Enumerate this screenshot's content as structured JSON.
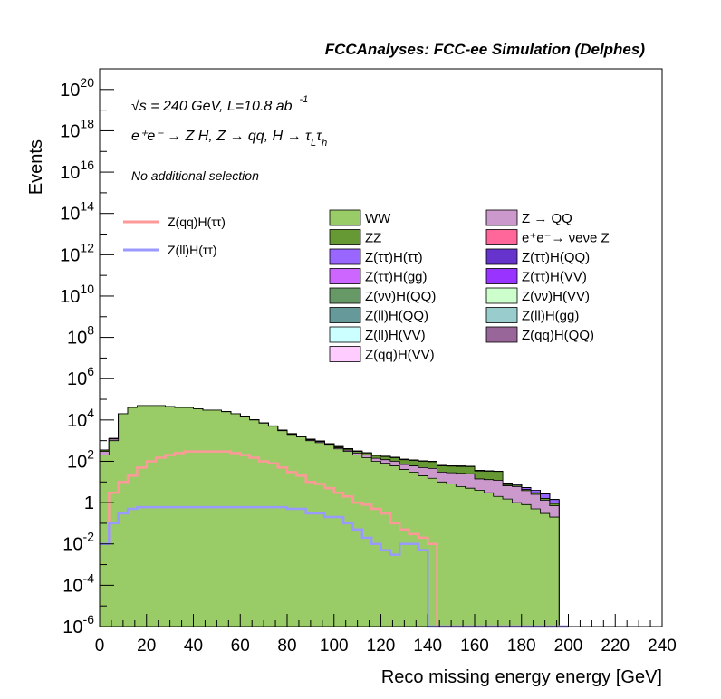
{
  "chart_data": {
    "type": "area",
    "title": "FCCAnalyses: FCC-ee Simulation (Delphes)",
    "xlabel": "Reco missing energy energy [GeV]",
    "ylabel": "Events",
    "xlim": [
      0,
      240
    ],
    "ylim": [
      1e-06,
      1e+21
    ],
    "log_y": true,
    "x_ticks": [
      "0",
      "20",
      "40",
      "60",
      "80",
      "100",
      "120",
      "140",
      "160",
      "180",
      "200",
      "220",
      "240"
    ],
    "y_ticks": [
      {
        "base": "10",
        "exp": "20",
        "value": 1e+20
      },
      {
        "base": "10",
        "exp": "18",
        "value": 1e+18
      },
      {
        "base": "10",
        "exp": "16",
        "value": 1e+16
      },
      {
        "base": "10",
        "exp": "14",
        "value": 100000000000000.0
      },
      {
        "base": "10",
        "exp": "12",
        "value": 1000000000000.0
      },
      {
        "base": "10",
        "exp": "10",
        "value": 10000000000.0
      },
      {
        "base": "10",
        "exp": "8",
        "value": 100000000.0
      },
      {
        "base": "10",
        "exp": "6",
        "value": 1000000.0
      },
      {
        "base": "10",
        "exp": "4",
        "value": 10000.0
      },
      {
        "base": "10",
        "exp": "2",
        "value": 100.0
      },
      {
        "base": "1",
        "exp": "",
        "value": 1
      },
      {
        "base": "10",
        "exp": "-2",
        "value": 0.01
      },
      {
        "base": "10",
        "exp": "-4",
        "value": 0.0001
      },
      {
        "base": "10",
        "exp": "-6",
        "value": 1e-06
      }
    ],
    "annotations": {
      "energy_sqrt": "√s",
      "energy_rest": " = 240 GeV, L=10.8 ab",
      "lumi_exp": "-1",
      "process": "e⁺e⁻ → Z H, Z → qq, H → τ",
      "tau1_sub": "L",
      "tau2": "τ",
      "tau2_sub": "h",
      "selection": "No additional selection"
    },
    "bin_edges_start": 0,
    "bin_width": 4,
    "stacked": [
      {
        "name": "WW",
        "color": "#99cc66",
        "values": [
          200.0,
          1000.0,
          20000.0,
          40000.0,
          50000.0,
          50000.0,
          50000.0,
          45000.0,
          40000.0,
          40000.0,
          35000.0,
          30000.0,
          30000.0,
          25000.0,
          20000.0,
          15000.0,
          10000.0,
          7000.0,
          5000.0,
          3000.0,
          2000.0,
          1500.0,
          1000.0,
          800.0,
          600.0,
          400.0,
          300.0,
          200.0,
          150.0,
          100.0,
          80.0,
          60.0,
          40.0,
          30.0,
          20.0,
          15.0,
          10.0,
          8,
          6,
          5,
          4,
          3,
          2,
          1.5,
          1,
          0.8,
          0.5,
          0.3,
          0.2,
          0
        ]
      },
      {
        "name": "Z → QQ",
        "color": "#cc99cc",
        "values": [
          100.0,
          200.0,
          200.0,
          200.0,
          200.0,
          200.0,
          200.0,
          200.0,
          200.0,
          200.0,
          200.0,
          200.0,
          200.0,
          150.0,
          150.0,
          150.0,
          120.0,
          100.0,
          100.0,
          100.0,
          100.0,
          100.0,
          100.0,
          100.0,
          50.0,
          50.0,
          50.0,
          50.0,
          50.0,
          40.0,
          40.0,
          40.0,
          30.0,
          30.0,
          30.0,
          30.0,
          20.0,
          20.0,
          20.0,
          20.0,
          10.0,
          10.0,
          10.0,
          5,
          5,
          3,
          2,
          1,
          0.5,
          0
        ]
      },
      {
        "name": "ZZ",
        "color": "#669933",
        "values": [
          50.0,
          50.0,
          50.0,
          50.0,
          50.0,
          50.0,
          50.0,
          50.0,
          50.0,
          50.0,
          50.0,
          50.0,
          50.0,
          50.0,
          50.0,
          50.0,
          50.0,
          50.0,
          50.0,
          50.0,
          50.0,
          50.0,
          50.0,
          50.0,
          50.0,
          50.0,
          50.0,
          50.0,
          50.0,
          50.0,
          50.0,
          50.0,
          50.0,
          50.0,
          50.0,
          50.0,
          30.0,
          30.0,
          30.0,
          30.0,
          20.0,
          20.0,
          20.0,
          1,
          1,
          0.5,
          0.5,
          0.3,
          0.2,
          0
        ]
      },
      {
        "name": "e⁺e⁻→ νeνe Z",
        "color": "#ff6699",
        "values": [
          0,
          0,
          0,
          0,
          0,
          0,
          0,
          0,
          0,
          0,
          0,
          0,
          0,
          0,
          0,
          0,
          0,
          0,
          0,
          0,
          0,
          0,
          0,
          0,
          0,
          0,
          0,
          0,
          0.01,
          0,
          0,
          0,
          0,
          0,
          0.01,
          0,
          0,
          0,
          0,
          0.01,
          0,
          0,
          0.01,
          0,
          0,
          0,
          0,
          0,
          0,
          0
        ]
      },
      {
        "name": "Z(ττ)H(ττ)",
        "color": "#9966ff",
        "values": [
          0.1,
          1,
          1,
          1,
          1,
          1,
          1,
          1,
          1,
          1,
          1,
          1,
          1,
          1,
          1,
          1,
          1,
          1,
          1,
          1,
          1,
          1,
          1,
          1,
          1,
          1,
          1,
          1,
          1,
          1,
          1,
          1,
          1,
          1,
          1,
          1,
          1,
          1,
          1,
          1,
          1,
          1,
          1,
          1,
          1,
          1,
          1,
          1,
          0.5,
          0
        ]
      },
      {
        "name": "Z(ττ)H(QQ)",
        "color": "#6633cc",
        "values": [
          0.5,
          3,
          10,
          10,
          10,
          10,
          10,
          10,
          10,
          10,
          10,
          10,
          10,
          10,
          10,
          10,
          10,
          10,
          10,
          10,
          10,
          10,
          8,
          8,
          5,
          5,
          5,
          5,
          3,
          3,
          2,
          2,
          1,
          1,
          1,
          1,
          0.5,
          0.5,
          0.3,
          0.3,
          0.2,
          0.1,
          0,
          0,
          0,
          0,
          0,
          0,
          0,
          0
        ]
      },
      {
        "name": "Z(ττ)H(gg)",
        "color": "#cc66ff",
        "values": [
          0.1,
          0.5,
          0.5,
          0.5,
          0.5,
          0.5,
          0.5,
          0.5,
          0.5,
          0.5,
          0.5,
          0.5,
          0.5,
          0.5,
          0.5,
          0.5,
          0.5,
          0.5,
          0.5,
          0.5,
          0.5,
          0.5,
          0.5,
          0.5,
          0.3,
          0.3,
          0.3,
          0.3,
          0.2,
          0.2,
          0.2,
          0.2,
          0.1,
          0.1,
          0.1,
          0.1,
          0.05,
          0.05,
          0,
          0,
          0,
          0,
          0,
          0,
          0,
          0,
          0,
          0,
          0,
          0
        ]
      },
      {
        "name": "Z(ττ)H(VV)",
        "color": "#9933ff",
        "values": [
          0.2,
          1,
          2,
          2,
          2,
          2,
          2,
          2,
          2,
          2,
          2,
          2,
          2,
          2,
          2,
          2,
          2,
          2,
          2,
          2,
          2,
          2,
          2,
          2,
          2,
          2,
          1,
          1,
          1,
          1,
          1,
          1,
          0.5,
          0.5,
          0.5,
          0.5,
          0.3,
          0.3,
          0.2,
          0.2,
          0.1,
          0.1,
          0,
          0,
          0,
          0,
          0,
          0,
          0,
          0
        ]
      },
      {
        "name": "Z(νν)H(QQ)",
        "color": "#669966",
        "values": [
          0,
          0,
          0,
          0,
          0,
          0,
          0,
          0,
          0,
          0,
          0,
          0,
          0,
          0,
          0,
          0,
          0,
          0,
          0,
          0,
          0,
          0,
          0,
          0,
          0,
          0,
          0.01,
          0.02,
          0.05,
          0.05,
          0.05,
          0.03,
          0,
          0,
          0,
          0,
          0,
          0,
          0,
          0,
          0,
          0,
          0,
          0,
          0,
          0,
          0,
          0,
          0,
          0
        ]
      },
      {
        "name": "Z(νν)H(VV)",
        "color": "#ccffcc",
        "values": [
          0,
          0,
          0,
          0,
          0,
          0,
          0,
          0,
          0,
          0,
          0,
          0,
          0,
          0,
          0,
          0,
          0,
          0,
          0,
          0,
          0,
          0,
          0,
          0,
          0,
          0,
          2,
          2,
          2,
          2,
          2,
          2,
          2,
          2,
          2,
          2,
          1,
          1,
          1,
          1,
          0.5,
          0.5,
          0.3,
          0.2,
          0.1,
          0,
          0,
          0,
          0,
          0
        ]
      },
      {
        "name": "Z(ll)H(QQ)",
        "color": "#669999",
        "values": [
          1,
          10,
          30,
          30,
          30,
          30,
          30,
          30,
          30,
          30,
          30,
          30,
          30,
          30,
          30,
          30,
          30,
          30,
          30,
          30,
          30,
          20,
          15,
          10,
          8,
          5,
          3,
          2,
          1,
          0.5,
          0.3,
          0.1,
          0,
          0,
          0,
          0,
          0,
          0,
          0,
          0,
          0,
          0,
          0,
          0,
          0,
          0,
          0,
          0,
          0,
          0
        ]
      },
      {
        "name": "Z(ll)H(gg)",
        "color": "#99cccc",
        "values": [
          0.1,
          0.1,
          0.1,
          0.1,
          0.1,
          0.1,
          0.1,
          0.1,
          0.1,
          0.1,
          0.1,
          0.1,
          0.1,
          0.1,
          0.1,
          0.1,
          0.1,
          0.1,
          0.1,
          0.1,
          0.1,
          0.1,
          0.1,
          0.1,
          0.05,
          0.05,
          0.03,
          0.02,
          0.01,
          0.01,
          0,
          0,
          0,
          0,
          0,
          0,
          0,
          0,
          0,
          0,
          0,
          0,
          0,
          0,
          0,
          0,
          0,
          0,
          0,
          0
        ]
      },
      {
        "name": "Z(ll)H(VV)",
        "color": "#ccffff",
        "values": [
          0.5,
          2,
          2,
          2,
          2,
          2,
          2,
          2,
          2,
          2,
          2,
          2,
          2,
          2,
          2,
          2,
          2,
          2,
          2,
          2,
          2,
          1,
          1,
          1,
          1,
          1,
          0.5,
          0.5,
          0.3,
          0.2,
          0.1,
          0.05,
          0,
          0,
          0,
          0,
          0,
          0,
          0,
          0,
          0,
          0,
          0,
          0,
          0,
          0,
          0,
          0,
          0,
          0
        ]
      },
      {
        "name": "Z(qq)H(QQ)",
        "color": "#996699",
        "values": [
          0,
          0,
          0,
          0,
          0.0001,
          0,
          0,
          0,
          0,
          0,
          0,
          0,
          0,
          0,
          0,
          0,
          0,
          0,
          0,
          0,
          0,
          0,
          0,
          0,
          0,
          0,
          0,
          0,
          0,
          0,
          0,
          0,
          0,
          0,
          0,
          0,
          0,
          0,
          0,
          0,
          0,
          0,
          0,
          0,
          0,
          0,
          0,
          0,
          0,
          0
        ]
      },
      {
        "name": "Z(qq)H(VV)",
        "color": "#ffccff",
        "values": [
          0,
          0,
          0,
          0,
          10,
          10,
          10,
          10,
          10,
          10,
          10,
          10,
          10,
          10,
          10,
          10,
          10,
          10,
          10,
          10,
          10,
          10,
          10,
          10,
          5,
          5,
          3,
          3,
          2,
          2,
          1,
          1,
          0,
          0,
          0,
          0,
          0,
          0,
          0,
          0,
          0,
          0,
          0,
          0,
          0,
          0,
          0,
          0,
          0,
          0
        ]
      }
    ],
    "overlay_lines": [
      {
        "name": "Z(qq)H(ττ)",
        "color": "#ff9999",
        "values": [
          0.01,
          3,
          10,
          20,
          50,
          100,
          150,
          200,
          250,
          300,
          300,
          300,
          300,
          300,
          250,
          200,
          150,
          100,
          80,
          50,
          30,
          20,
          10,
          8,
          5,
          3,
          2,
          1,
          0.8,
          0.5,
          0.3,
          0.1,
          0.05,
          0.03,
          0.02,
          0.01,
          0,
          0,
          0,
          0,
          0,
          0,
          0,
          0,
          0,
          0,
          0,
          0,
          0,
          0
        ]
      },
      {
        "name": "Z(ll)H(ττ)",
        "color": "#9999ff",
        "values": [
          0.01,
          0.1,
          0.3,
          0.5,
          0.6,
          0.6,
          0.6,
          0.6,
          0.6,
          0.6,
          0.6,
          0.6,
          0.6,
          0.6,
          0.6,
          0.6,
          0.6,
          0.6,
          0.6,
          0.6,
          0.5,
          0.5,
          0.3,
          0.3,
          0.2,
          0.2,
          0.1,
          0.05,
          0.02,
          0.01,
          0.005,
          0.003,
          0.01,
          0.01,
          0.005,
          0,
          0,
          0,
          0,
          0,
          0,
          0,
          0,
          0,
          0,
          0,
          0,
          0,
          0,
          0
        ]
      }
    ],
    "legend": {
      "lines_col": [
        "Z(qq)H(ττ)",
        "Z(ll)H(ττ)"
      ],
      "col1": [
        "WW",
        "ZZ",
        "Z(ττ)H(ττ)",
        "Z(ττ)H(gg)",
        "Z(νν)H(QQ)",
        "Z(ll)H(QQ)",
        "Z(ll)H(VV)",
        "Z(qq)H(VV)"
      ],
      "col2": [
        "Z → QQ",
        "e⁺e⁻→ νeνe Z",
        "Z(ττ)H(QQ)",
        "Z(ττ)H(VV)",
        "Z(νν)H(VV)",
        "Z(ll)H(gg)",
        "Z(qq)H(QQ)"
      ]
    }
  }
}
